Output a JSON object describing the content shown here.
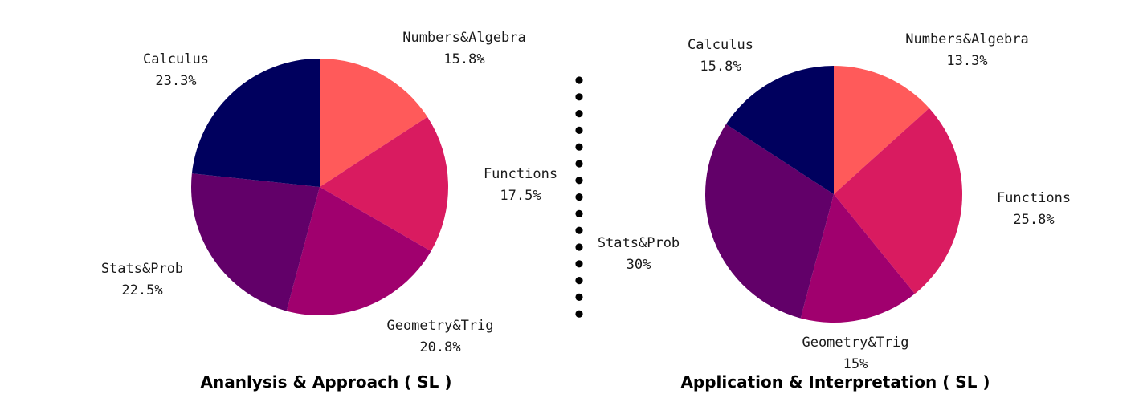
{
  "chart_data": [
    {
      "type": "pie",
      "title": "Ananlysis & Approach ( SL )",
      "categories": [
        "Numbers&Algebra",
        "Functions",
        "Geometry&Trig",
        "Stats&Prob",
        "Calculus"
      ],
      "values": [
        15.8,
        17.5,
        20.8,
        22.5,
        23.3
      ],
      "value_labels": [
        "15.8%",
        "17.5%",
        "20.8%",
        "22.5%",
        "23.3%"
      ],
      "colors": [
        "#ff5a5a",
        "#d91b60",
        "#a0006e",
        "#620069",
        "#00005e"
      ],
      "legend": "none",
      "slice_labels": "outside"
    },
    {
      "type": "pie",
      "title": "Application & Interpretation ( SL )",
      "categories": [
        "Numbers&Algebra",
        "Functions",
        "Geometry&Trig",
        "Stats&Prob",
        "Calculus"
      ],
      "values": [
        13.3,
        25.8,
        15,
        30,
        15.8
      ],
      "value_labels": [
        "13.3%",
        "25.8%",
        "15%",
        "30%",
        "15.8%"
      ],
      "colors": [
        "#ff5a5a",
        "#d91b60",
        "#a0006e",
        "#620069",
        "#00005e"
      ],
      "legend": "none",
      "slice_labels": "outside"
    }
  ],
  "divider": {
    "style": "dotted",
    "color": "#000000"
  }
}
